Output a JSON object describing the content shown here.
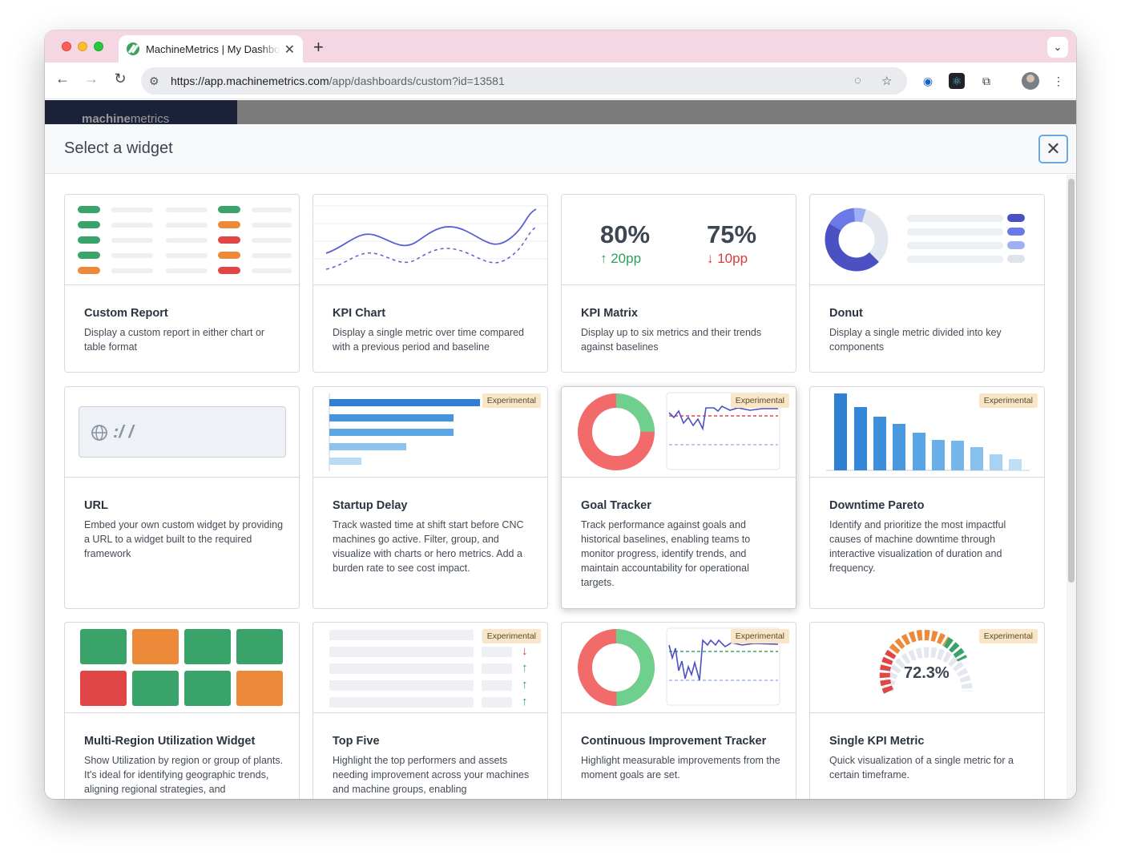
{
  "browser": {
    "tab_title": "MachineMetrics | My Dashboard",
    "url_host": "https://app.machinemetrics.com",
    "url_path": "/app/dashboards/custom?id=13581"
  },
  "app": {
    "logo_bold": "machine",
    "logo_thin": "metrics"
  },
  "modal": {
    "title": "Select a widget",
    "close_label": "✕"
  },
  "badge_label": "Experimental",
  "widgets": [
    {
      "title": "Custom Report",
      "desc": "Display a custom report in either chart or table format"
    },
    {
      "title": "KPI Chart",
      "desc": "Display a single metric over time compared with a previous period and baseline"
    },
    {
      "title": "KPI Matrix",
      "desc": "Display up to six metrics and their trends against baselines"
    },
    {
      "title": "Donut",
      "desc": "Display a single metric divided into key components"
    },
    {
      "title": "URL",
      "desc": "Embed your own custom widget by providing a URL to a widget built to the required framework"
    },
    {
      "title": "Startup Delay",
      "desc": "Track wasted time at shift start before CNC machines go active. Filter, group, and visualize with charts or hero metrics. Add a burden rate to see cost impact."
    },
    {
      "title": "Goal Tracker",
      "desc": "Track performance against goals and historical baselines, enabling teams to monitor progress, identify trends, and maintain accountability for operational targets."
    },
    {
      "title": "Downtime Pareto",
      "desc": "Identify and prioritize the most impactful causes of machine downtime through interactive visualization of duration and frequency."
    },
    {
      "title": "Multi-Region Utilization Widget",
      "desc": "Show Utilization by region or group of plants. It's ideal for identifying geographic trends, aligning regional strategies, and"
    },
    {
      "title": "Top Five",
      "desc": "Highlight the top performers and assets needing improvement across your machines and machine groups, enabling"
    },
    {
      "title": "Continuous Improvement Tracker",
      "desc": "Highlight measurable improvements from the moment goals are set."
    },
    {
      "title": "Single KPI Metric",
      "desc": "Quick visualization of a single metric for a certain timeframe."
    }
  ],
  "kpi_matrix": {
    "value1": "80%",
    "delta1": "↑ 20pp",
    "value2": "75%",
    "delta2": "↓ 10pp"
  },
  "url_preview": {
    "text": ":/ /"
  },
  "single_kpi": {
    "value": "72.3%"
  },
  "colors": {
    "green": "#3aa36a",
    "orange": "#ec8a3a",
    "red": "#e04646",
    "blue": "#2f7fd3"
  }
}
